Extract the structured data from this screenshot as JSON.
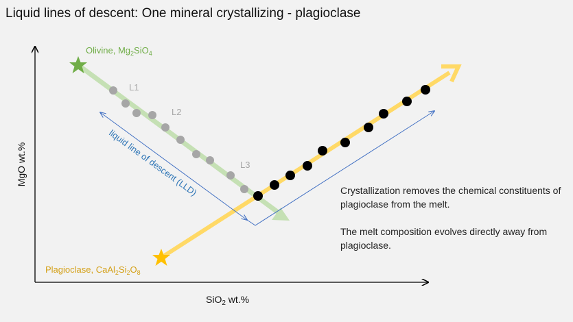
{
  "title": "Liquid lines of descent: One mineral crystallizing - plagioclase",
  "axes": {
    "x_label": "SiO",
    "x_sub": "2",
    "x_suffix": " wt.%",
    "y_label": "MgO wt.%"
  },
  "olivine": {
    "name": "Olivine, Mg",
    "s1": "2",
    "mid": "SiO",
    "s2": "4",
    "color": "#70ad47"
  },
  "plagioclase": {
    "name": "Plagioclase, CaAl",
    "s1": "2",
    "mid1": "Si",
    "s2": "2",
    "mid2": "O",
    "s3": "8",
    "color": "#d4a017"
  },
  "liquid_labels": [
    "L1",
    "L2",
    "L3"
  ],
  "lld_label": "liquid line of descent (LLD)",
  "description": [
    "Crystallization removes the chemical constituents of plagioclase from the melt.",
    "The melt composition evolves directly away from plagioclase."
  ],
  "colors": {
    "gray_dot": "#a6a6a6",
    "black_dot": "#000000",
    "lld": "#4472c4",
    "green_path": "#c5e0b4",
    "yellow_path": "#ffd966"
  }
}
